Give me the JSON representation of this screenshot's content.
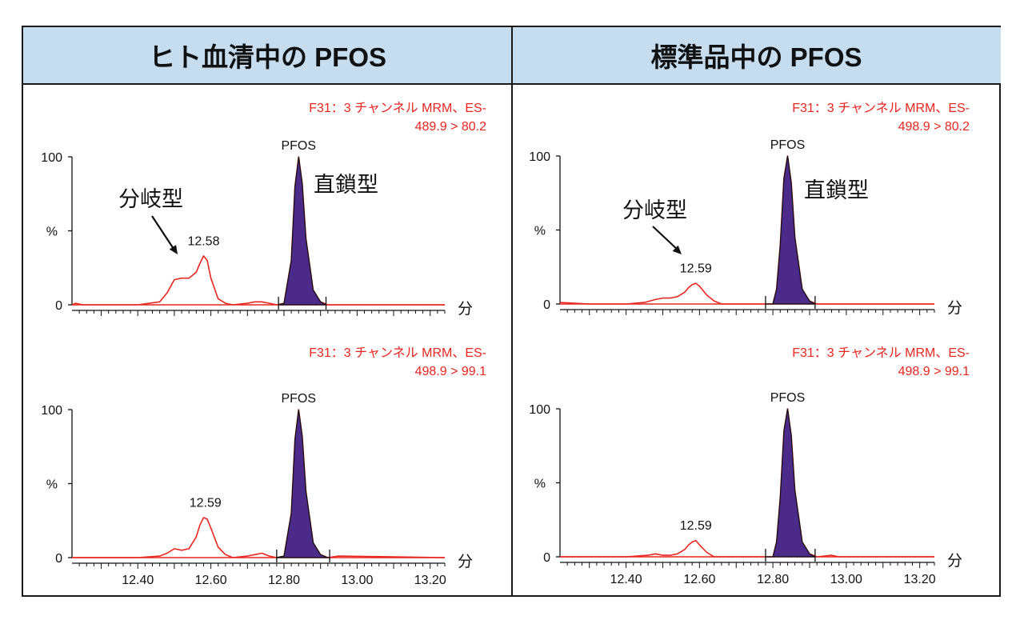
{
  "panels": [
    {
      "title": "ヒト血清中の PFOS"
    },
    {
      "title": "標準品中の PFOS"
    }
  ],
  "colors": {
    "trace": "#e8261f",
    "peak_fill": "#4b2a8a",
    "header_bg": "#c6ddf0",
    "axis": "#111111",
    "red_text": "#e8261f"
  },
  "chart_data": [
    {
      "type": "line",
      "panel": "left",
      "position": "top",
      "channel_line1": "F31：3 チャンネル MRM、ES-",
      "channel_line2": "489.9 > 80.2",
      "xunit": "分",
      "ylabel": "%",
      "yticks": [
        "100",
        "0"
      ],
      "xlim": [
        12.22,
        13.24
      ],
      "ylim": [
        0,
        100
      ],
      "xticklabels": [],
      "series": [
        {
          "x": [
            12.22,
            12.23,
            12.25,
            12.3,
            12.4,
            12.46,
            12.48,
            12.5,
            12.52,
            12.54,
            12.56,
            12.57,
            12.58,
            12.59,
            12.6,
            12.62,
            12.64,
            12.66,
            12.7,
            12.72,
            12.74,
            12.76,
            12.78,
            12.8,
            12.82,
            12.83,
            12.84,
            12.85,
            12.86,
            12.88,
            12.9,
            12.92,
            13.0,
            13.24
          ],
          "y": [
            0,
            1,
            0,
            0,
            0,
            2,
            8,
            17,
            18,
            18,
            22,
            28,
            33,
            30,
            18,
            4,
            1,
            0,
            1,
            2,
            2,
            1,
            0,
            1,
            30,
            80,
            100,
            82,
            45,
            10,
            2,
            0,
            0,
            0
          ]
        }
      ],
      "peak_label": "PFOS",
      "peak_range": [
        12.785,
        12.915
      ],
      "peak_boundaries": [
        12.785,
        12.915
      ],
      "labels": [
        {
          "text": "12.58",
          "x": 12.58,
          "y": 36
        }
      ],
      "annotations": {
        "branched": "分岐型",
        "linear": "直鎖型"
      }
    },
    {
      "type": "line",
      "panel": "left",
      "position": "bottom",
      "channel_line1": "F31：3 チャンネル MRM、ES-",
      "channel_line2": "498.9 > 99.1",
      "xunit": "分",
      "ylabel": "%",
      "yticks": [
        "100",
        "0"
      ],
      "xlim": [
        12.22,
        13.24
      ],
      "ylim": [
        0,
        100
      ],
      "xticklabels": [
        "12.40",
        "12.60",
        "12.80",
        "13.00",
        "13.20"
      ],
      "series": [
        {
          "x": [
            12.22,
            12.4,
            12.46,
            12.48,
            12.5,
            12.52,
            12.54,
            12.56,
            12.57,
            12.58,
            12.59,
            12.6,
            12.62,
            12.64,
            12.66,
            12.7,
            12.72,
            12.74,
            12.76,
            12.78,
            12.8,
            12.82,
            12.83,
            12.84,
            12.85,
            12.86,
            12.88,
            12.9,
            12.92,
            12.95,
            13.24
          ],
          "y": [
            0,
            0,
            1,
            3,
            6,
            5,
            6,
            14,
            22,
            27,
            26,
            20,
            7,
            2,
            0,
            1,
            2,
            3,
            1,
            0,
            1,
            30,
            80,
            100,
            82,
            45,
            10,
            2,
            0,
            1,
            0
          ]
        }
      ],
      "peak_label": "PFOS",
      "peak_range": [
        12.78,
        12.925
      ],
      "peak_boundaries": [
        12.78,
        12.925
      ],
      "labels": [
        {
          "text": "12.59",
          "x": 12.585,
          "y": 30
        }
      ]
    },
    {
      "type": "line",
      "panel": "right",
      "position": "top",
      "channel_line1": "F31：3 チャンネル MRM、ES-",
      "channel_line2": "498.9 > 80.2",
      "xunit": "分",
      "ylabel": "%",
      "yticks": [
        "100",
        "0"
      ],
      "xlim": [
        12.22,
        13.24
      ],
      "ylim": [
        0,
        100
      ],
      "xticklabels": [],
      "series": [
        {
          "x": [
            12.22,
            12.3,
            12.4,
            12.45,
            12.48,
            12.5,
            12.52,
            12.54,
            12.56,
            12.57,
            12.58,
            12.59,
            12.6,
            12.62,
            12.64,
            12.66,
            12.7,
            12.8,
            12.81,
            12.82,
            12.83,
            12.84,
            12.85,
            12.86,
            12.88,
            12.9,
            12.92,
            13.24
          ],
          "y": [
            1,
            0,
            0,
            1,
            3,
            4,
            4,
            5,
            8,
            11,
            13,
            14,
            12,
            6,
            2,
            0,
            0,
            0,
            10,
            40,
            85,
            100,
            82,
            45,
            10,
            2,
            0,
            0
          ]
        }
      ],
      "peak_label": "PFOS",
      "peak_range": [
        12.78,
        12.915
      ],
      "peak_boundaries": [
        12.78,
        12.915
      ],
      "labels": [
        {
          "text": "12.59",
          "x": 12.59,
          "y": 17
        }
      ],
      "annotations": {
        "branched": "分岐型",
        "linear": "直鎖型"
      }
    },
    {
      "type": "line",
      "panel": "right",
      "position": "bottom",
      "channel_line1": "F31：3 チャンネル MRM、ES-",
      "channel_line2": "498.9 > 99.1",
      "xunit": "分",
      "ylabel": "%",
      "yticks": [
        "100",
        "0"
      ],
      "xlim": [
        12.22,
        13.24
      ],
      "ylim": [
        0,
        100
      ],
      "xticklabels": [
        "12.40",
        "12.60",
        "12.80",
        "13.00",
        "13.20"
      ],
      "series": [
        {
          "x": [
            12.22,
            12.4,
            12.46,
            12.48,
            12.5,
            12.52,
            12.54,
            12.56,
            12.57,
            12.58,
            12.59,
            12.6,
            12.62,
            12.64,
            12.66,
            12.7,
            12.8,
            12.81,
            12.82,
            12.83,
            12.84,
            12.85,
            12.86,
            12.88,
            12.9,
            12.92,
            12.96,
            12.98,
            13.24
          ],
          "y": [
            0,
            0,
            1,
            2,
            1,
            1,
            2,
            5,
            8,
            10,
            11,
            8,
            3,
            0,
            0,
            0,
            0,
            10,
            40,
            85,
            100,
            82,
            45,
            10,
            2,
            0,
            1,
            0,
            0
          ]
        }
      ],
      "peak_label": "PFOS",
      "peak_range": [
        12.78,
        12.915
      ],
      "peak_boundaries": [
        12.78,
        12.915
      ],
      "labels": [
        {
          "text": "12.59",
          "x": 12.59,
          "y": 14
        }
      ]
    }
  ]
}
